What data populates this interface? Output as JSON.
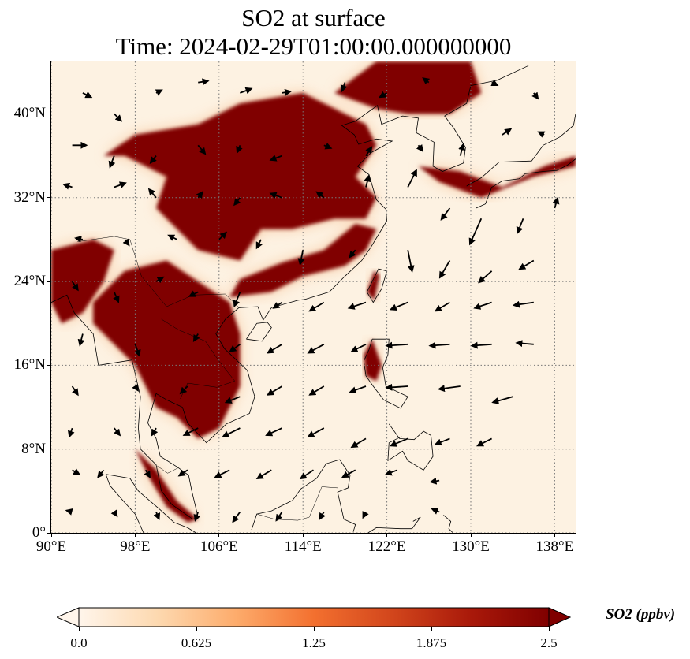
{
  "title": {
    "line1": "SO2 at surface",
    "line2": "Time: 2024-02-29T01:00:00.000000000"
  },
  "map": {
    "lon_range": [
      90,
      140
    ],
    "lat_range": [
      0,
      45
    ],
    "x_ticks": [
      {
        "value": 90,
        "label": "90°E"
      },
      {
        "value": 98,
        "label": "98°E"
      },
      {
        "value": 106,
        "label": "106°E"
      },
      {
        "value": 114,
        "label": "114°E"
      },
      {
        "value": 122,
        "label": "122°E"
      },
      {
        "value": 130,
        "label": "130°E"
      },
      {
        "value": 138,
        "label": "138°E"
      }
    ],
    "y_ticks": [
      {
        "value": 0,
        "label": "0°"
      },
      {
        "value": 8,
        "label": "8°N"
      },
      {
        "value": 16,
        "label": "16°N"
      },
      {
        "value": 24,
        "label": "24°N"
      },
      {
        "value": 32,
        "label": "32°N"
      },
      {
        "value": 40,
        "label": "40°N"
      }
    ],
    "gridlines": true,
    "colors": {
      "background": "#fdf2e2",
      "low": "#fbe3c4",
      "mid": "#f4a46a",
      "high": "#c52a13",
      "max": "#800000",
      "coast": "#000000",
      "grid": "#777777",
      "wind": "#000000"
    },
    "high_so2_regions": [
      {
        "name": "north-china-plain",
        "lonlat": [
          [
            98,
            38
          ],
          [
            104,
            39
          ],
          [
            108,
            41
          ],
          [
            114,
            42
          ],
          [
            118,
            40
          ],
          [
            120,
            39
          ],
          [
            121,
            37
          ],
          [
            119,
            34
          ],
          [
            121,
            32
          ],
          [
            120,
            30
          ],
          [
            117,
            30
          ],
          [
            113,
            29
          ],
          [
            110,
            29
          ],
          [
            108,
            26
          ],
          [
            104,
            27
          ],
          [
            102,
            29
          ],
          [
            100,
            31
          ],
          [
            101,
            34
          ],
          [
            97,
            36
          ],
          [
            95,
            36
          ],
          [
            98,
            38
          ]
        ]
      },
      {
        "name": "northeast-china",
        "lonlat": [
          [
            117,
            42
          ],
          [
            121,
            45
          ],
          [
            130,
            45
          ],
          [
            131,
            42
          ],
          [
            128,
            40
          ],
          [
            124,
            40
          ],
          [
            121,
            40.5
          ],
          [
            117,
            42
          ]
        ]
      },
      {
        "name": "south-china-coast",
        "lonlat": [
          [
            107,
            22.5
          ],
          [
            111,
            23
          ],
          [
            114,
            24.5
          ],
          [
            118,
            25.5
          ],
          [
            120,
            27
          ],
          [
            121,
            29
          ],
          [
            119,
            29.5
          ],
          [
            116,
            27
          ],
          [
            112,
            25.8
          ],
          [
            108,
            24.2
          ],
          [
            107,
            22.5
          ]
        ]
      },
      {
        "name": "japan-korea",
        "lonlat": [
          [
            125,
            35
          ],
          [
            129,
            34.5
          ],
          [
            133,
            33
          ],
          [
            137,
            35
          ],
          [
            140,
            36
          ],
          [
            140,
            35
          ],
          [
            136,
            34
          ],
          [
            131,
            32
          ],
          [
            127,
            33.5
          ],
          [
            125,
            35
          ]
        ]
      },
      {
        "name": "taiwan",
        "lonlat": [
          [
            120.1,
            23
          ],
          [
            120.8,
            25
          ],
          [
            121.3,
            24.6
          ],
          [
            120.8,
            22.2
          ],
          [
            120.1,
            23
          ]
        ]
      },
      {
        "name": "indochina",
        "lonlat": [
          [
            94,
            22
          ],
          [
            97,
            25
          ],
          [
            101,
            26
          ],
          [
            104,
            24
          ],
          [
            107,
            22
          ],
          [
            108,
            19
          ],
          [
            108,
            14
          ],
          [
            106,
            10
          ],
          [
            104,
            9
          ],
          [
            102,
            11
          ],
          [
            100,
            12
          ],
          [
            98,
            16
          ],
          [
            96,
            18
          ],
          [
            94,
            20
          ],
          [
            94,
            22
          ]
        ]
      },
      {
        "name": "bengal-east-india",
        "lonlat": [
          [
            90,
            22
          ],
          [
            90,
            27
          ],
          [
            94,
            28
          ],
          [
            96,
            27
          ],
          [
            95,
            24
          ],
          [
            93,
            21
          ],
          [
            91,
            20
          ],
          [
            90,
            22
          ]
        ]
      },
      {
        "name": "malay-peninsula",
        "lonlat": [
          [
            98,
            8
          ],
          [
            100,
            6
          ],
          [
            102,
            3
          ],
          [
            104,
            1.3
          ],
          [
            103,
            1
          ],
          [
            101,
            2.5
          ],
          [
            99.5,
            5
          ],
          [
            98,
            8
          ]
        ]
      },
      {
        "name": "luzon",
        "lonlat": [
          [
            119.8,
            17
          ],
          [
            120.6,
            18.5
          ],
          [
            121.5,
            16
          ],
          [
            121,
            14.5
          ],
          [
            120,
            15
          ],
          [
            119.8,
            17
          ]
        ]
      }
    ],
    "wind_vectors": [
      [
        93,
        42,
        0.6,
        -0.3
      ],
      [
        96,
        40,
        0.5,
        -0.5
      ],
      [
        100,
        42,
        0.4,
        0.2
      ],
      [
        104,
        43,
        0.7,
        0.1
      ],
      [
        108,
        42,
        0.8,
        0.3
      ],
      [
        112,
        42,
        0.6,
        0.1
      ],
      [
        118,
        43,
        -0.2,
        -0.6
      ],
      [
        122,
        42,
        -0.5,
        -0.3
      ],
      [
        126,
        43,
        -0.4,
        0.3
      ],
      [
        132,
        43,
        0.4,
        -0.2
      ],
      [
        136,
        42,
        0.3,
        -0.4
      ],
      [
        92,
        37,
        1.0,
        0.0
      ],
      [
        96,
        36,
        -0.3,
        -0.8
      ],
      [
        100,
        36,
        -0.4,
        -0.5
      ],
      [
        104,
        37,
        0.5,
        -0.6
      ],
      [
        108,
        37,
        -0.2,
        -0.5
      ],
      [
        112,
        36,
        -0.8,
        -0.3
      ],
      [
        116,
        37,
        0.5,
        -0.2
      ],
      [
        120,
        36,
        0.4,
        0.6
      ],
      [
        125,
        37,
        0.3,
        -0.4
      ],
      [
        129,
        36,
        0.2,
        0.8
      ],
      [
        133,
        38,
        0.6,
        0.4
      ],
      [
        137,
        38,
        -0.4,
        0.2
      ],
      [
        92,
        33,
        -0.6,
        0.2
      ],
      [
        96,
        33,
        0.8,
        0.3
      ],
      [
        100,
        32,
        -0.5,
        0.6
      ],
      [
        104,
        32,
        0.3,
        0.4
      ],
      [
        108,
        32,
        -0.4,
        -0.5
      ],
      [
        112,
        32,
        -0.8,
        0.3
      ],
      [
        116,
        32,
        -0.5,
        0.4
      ],
      [
        120,
        33,
        0.2,
        0.8
      ],
      [
        124,
        33,
        0.6,
        1.2
      ],
      [
        128,
        31,
        -0.6,
        -0.8
      ],
      [
        131,
        30,
        -0.8,
        -1.8
      ],
      [
        135,
        30,
        -0.4,
        -1.0
      ],
      [
        138,
        31,
        0.2,
        0.7
      ],
      [
        93,
        28,
        -0.5,
        0.1
      ],
      [
        97,
        28,
        0.3,
        -0.4
      ],
      [
        102,
        28,
        -0.6,
        0.3
      ],
      [
        106,
        28,
        0.5,
        0.5
      ],
      [
        110,
        28,
        -0.3,
        -0.6
      ],
      [
        114,
        27,
        -0.2,
        -1.0
      ],
      [
        119,
        27,
        -0.4,
        -0.5
      ],
      [
        124,
        27,
        0.3,
        -1.5
      ],
      [
        128,
        26,
        -0.7,
        -1.2
      ],
      [
        132,
        25,
        -0.9,
        -0.8
      ],
      [
        136,
        26,
        -1.0,
        -0.6
      ],
      [
        92,
        24,
        0.4,
        -0.6
      ],
      [
        96,
        23,
        0.3,
        -0.7
      ],
      [
        100,
        24,
        0.5,
        0.3
      ],
      [
        104,
        23,
        -0.6,
        -0.3
      ],
      [
        108,
        23,
        -0.4,
        -1.0
      ],
      [
        112,
        22,
        -0.6,
        -0.4
      ],
      [
        116,
        22,
        -1.0,
        -0.6
      ],
      [
        120,
        22,
        -1.2,
        -0.4
      ],
      [
        124,
        22,
        -1.2,
        -0.5
      ],
      [
        128,
        22,
        -1.0,
        -0.6
      ],
      [
        132,
        22,
        -1.2,
        -0.4
      ],
      [
        136,
        22,
        -1.4,
        -0.2
      ],
      [
        93,
        19,
        -0.2,
        -0.8
      ],
      [
        98,
        18,
        0.3,
        -0.8
      ],
      [
        104,
        19,
        -0.3,
        -0.5
      ],
      [
        108,
        18,
        -0.7,
        -0.5
      ],
      [
        112,
        18,
        -1.0,
        -0.6
      ],
      [
        116,
        18,
        -1.1,
        -0.6
      ],
      [
        120,
        18,
        -1.0,
        -0.5
      ],
      [
        124,
        18,
        -1.5,
        -0.1
      ],
      [
        128,
        18,
        -1.4,
        -0.1
      ],
      [
        132,
        18,
        -1.4,
        -0.1
      ],
      [
        136,
        18,
        -1.2,
        0.1
      ],
      [
        92,
        14,
        0.4,
        -0.6
      ],
      [
        98,
        14,
        0.2,
        -0.3
      ],
      [
        103,
        14,
        -0.5,
        -0.5
      ],
      [
        108,
        13,
        -1.0,
        -0.4
      ],
      [
        112,
        14,
        -1.0,
        -0.6
      ],
      [
        116,
        14,
        -1.0,
        -0.6
      ],
      [
        120,
        14,
        -1.1,
        -0.4
      ],
      [
        124,
        14,
        -1.5,
        -0.1
      ],
      [
        129,
        14,
        -1.5,
        -0.2
      ],
      [
        134,
        13,
        -1.4,
        -0.4
      ],
      [
        92,
        10,
        -0.2,
        -0.6
      ],
      [
        96,
        10,
        0.4,
        -0.5
      ],
      [
        100,
        10,
        -0.3,
        -0.5
      ],
      [
        104,
        10,
        -1.0,
        -0.5
      ],
      [
        108,
        10,
        -1.2,
        -0.6
      ],
      [
        112,
        10,
        -1.1,
        -0.5
      ],
      [
        116,
        10,
        -1.1,
        -0.6
      ],
      [
        120,
        9,
        -1.0,
        -0.6
      ],
      [
        124,
        9,
        -1.2,
        -0.5
      ],
      [
        128,
        9,
        -1.0,
        -0.4
      ],
      [
        132,
        9,
        -1.0,
        -0.5
      ],
      [
        92,
        6,
        0.5,
        -0.3
      ],
      [
        95,
        6,
        -0.4,
        -0.5
      ],
      [
        99,
        6,
        0.3,
        -0.5
      ],
      [
        103,
        6,
        -0.6,
        -0.4
      ],
      [
        107,
        6,
        -1.0,
        -0.5
      ],
      [
        111,
        6,
        -1.0,
        -0.6
      ],
      [
        115,
        6,
        -0.9,
        -0.6
      ],
      [
        119,
        6,
        -0.9,
        -0.5
      ],
      [
        123,
        6,
        -0.8,
        -0.3
      ],
      [
        127,
        5,
        -0.6,
        -0.1
      ],
      [
        92,
        2,
        -0.4,
        0.1
      ],
      [
        96,
        2,
        0.2,
        -0.3
      ],
      [
        100,
        2,
        0.2,
        -0.5
      ],
      [
        104,
        2,
        -0.2,
        -0.6
      ],
      [
        108,
        2,
        -0.5,
        -0.7
      ],
      [
        112,
        2,
        -0.4,
        -0.6
      ],
      [
        116,
        2,
        -0.3,
        -0.5
      ],
      [
        120,
        2,
        -0.2,
        -0.4
      ],
      [
        127,
        2,
        -0.5,
        0.2
      ]
    ]
  },
  "colorbar": {
    "label": "SO2 (ppbv)",
    "min": 0,
    "max": 2.5,
    "extend": "both",
    "stops": [
      "#fff5eb",
      "#fdd9b0",
      "#fdac6c",
      "#f3702f",
      "#d2461c",
      "#a9190a",
      "#800000"
    ],
    "ticks": [
      {
        "value": 0,
        "label": "0.0"
      },
      {
        "value": 0.625,
        "label": "0.625"
      },
      {
        "value": 1.25,
        "label": "1.25"
      },
      {
        "value": 1.875,
        "label": "1.875"
      },
      {
        "value": 2.5,
        "label": "2.5"
      }
    ]
  }
}
